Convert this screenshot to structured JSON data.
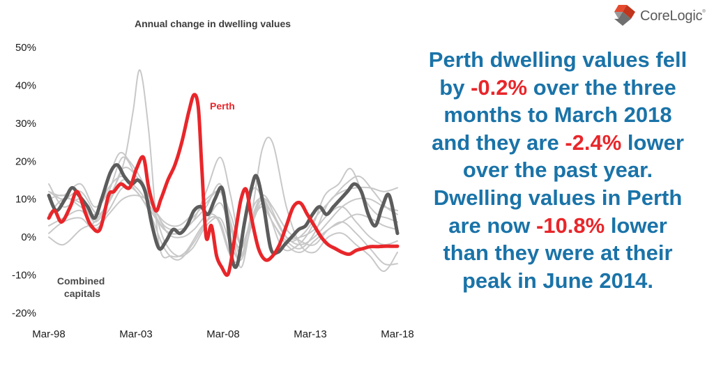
{
  "logo": {
    "name": "CoreLogic",
    "symbol": "®"
  },
  "summary": {
    "segments": [
      {
        "text": "Perth dwelling values fell by ",
        "highlight": false
      },
      {
        "text": "-0.2%",
        "highlight": true
      },
      {
        "text": " over the three months to March 2018 and they are ",
        "highlight": false
      },
      {
        "text": "-2.4%",
        "highlight": true
      },
      {
        "text": " lower over the past year. Dwelling values in Perth are now ",
        "highlight": false
      },
      {
        "text": "-10.8%",
        "highlight": true
      },
      {
        "text": " lower than they were at their peak in June 2014.",
        "highlight": false
      }
    ],
    "color": "#1a73a8",
    "highlight_color": "#e8262a"
  },
  "chart_data": {
    "type": "line",
    "title": "Annual change in dwelling values",
    "xlabel": "",
    "ylabel": "",
    "x_ticks": [
      "Mar-98",
      "Mar-03",
      "Mar-08",
      "Mar-13",
      "Mar-18"
    ],
    "x_range": [
      1998.17,
      2018.17
    ],
    "ylim": [
      -20,
      50
    ],
    "y_ticks": [
      "50%",
      "40%",
      "30%",
      "20%",
      "10%",
      "0%",
      "-10%",
      "-20%"
    ],
    "y_tick_values": [
      50,
      40,
      30,
      20,
      10,
      0,
      -10,
      -20
    ],
    "grid": false,
    "legend": "none",
    "annotations": [
      {
        "text": "Perth",
        "series": "Perth"
      },
      {
        "text": "Combined capitals",
        "series": "Combined capitals"
      }
    ],
    "series": [
      {
        "name": "Perth",
        "role": "highlight",
        "color": "#e8262a",
        "x": [
          1998.17,
          1998.5,
          1998.9,
          1999.4,
          1999.8,
          2000.3,
          2000.6,
          2001.1,
          2001.6,
          2001.9,
          2002.3,
          2002.8,
          2003.2,
          2003.6,
          2003.9,
          2004.3,
          2004.6,
          2005.0,
          2005.4,
          2005.8,
          2006.2,
          2006.5,
          2006.75,
          2006.95,
          2007.2,
          2007.5,
          2007.8,
          2008.1,
          2008.4,
          2008.6,
          2008.9,
          2009.2,
          2009.5,
          2009.8,
          2010.2,
          2010.6,
          2011.0,
          2011.4,
          2011.8,
          2012.2,
          2012.6,
          2013.0,
          2013.4,
          2013.8,
          2014.2,
          2014.6,
          2015.0,
          2015.4,
          2015.8,
          2016.2,
          2016.6,
          2017.0,
          2017.4,
          2017.8,
          2018.17
        ],
        "values": [
          5,
          7,
          4,
          8,
          12,
          6,
          3,
          2,
          11,
          12,
          14,
          13,
          18,
          21,
          13,
          7,
          10,
          15,
          19,
          25,
          33,
          37.5,
          34,
          18,
          0,
          3,
          -5,
          -8,
          -10,
          -7,
          2,
          10,
          12.5,
          5,
          -3,
          -6,
          -5,
          -2,
          3,
          8,
          9,
          6,
          3,
          0,
          -2,
          -3,
          -4,
          -4.5,
          -3.5,
          -3,
          -2.5,
          -2.5,
          -2.4,
          -2.4,
          -2.4
        ]
      },
      {
        "name": "Combined capitals",
        "role": "highlight",
        "color": "#5c5c5c",
        "x": [
          1998.17,
          1998.6,
          1999.1,
          1999.5,
          1999.9,
          2000.4,
          2000.8,
          2001.2,
          2001.7,
          2002.1,
          2002.5,
          2002.9,
          2003.3,
          2003.7,
          2004.1,
          2004.5,
          2004.9,
          2005.3,
          2005.7,
          2006.1,
          2006.5,
          2006.9,
          2007.3,
          2007.7,
          2008.1,
          2008.4,
          2008.7,
          2009.0,
          2009.4,
          2009.8,
          2010.1,
          2010.5,
          2010.9,
          2011.3,
          2011.7,
          2012.1,
          2012.5,
          2012.9,
          2013.3,
          2013.7,
          2014.1,
          2014.5,
          2014.9,
          2015.3,
          2015.7,
          2016.1,
          2016.5,
          2016.9,
          2017.3,
          2017.7,
          2018.17
        ],
        "values": [
          11,
          7,
          10,
          13,
          11,
          8,
          5,
          10,
          17,
          19,
          16,
          14,
          15,
          12,
          3,
          -3,
          -1,
          2,
          1,
          3,
          7,
          8,
          6,
          10,
          13,
          5,
          -6,
          -7,
          4,
          13,
          16,
          8,
          -3,
          -4,
          -2,
          0,
          2,
          3,
          6,
          8,
          6,
          8,
          10,
          12,
          14,
          12,
          6,
          3,
          8,
          11,
          1
        ]
      },
      {
        "name": "",
        "role": "context",
        "color": "#c8c8c8",
        "x": [
          1998.17,
          1999.0,
          2000.0,
          2001.0,
          2001.8,
          2002.5,
          2003.0,
          2003.4,
          2003.9,
          2004.5,
          2005.2,
          2006.0,
          2007.0,
          2007.8,
          2008.5,
          2009.0,
          2009.5,
          2010.0,
          2010.8,
          2011.6,
          2012.5,
          2013.3,
          2014.0,
          2014.8,
          2015.5,
          2016.3,
          2017.0,
          2017.6,
          2018.17
        ],
        "values": [
          12,
          10,
          12,
          6,
          12,
          20,
          33,
          44,
          28,
          -2,
          -5,
          -4,
          3,
          5,
          -4,
          -7,
          6,
          13,
          6,
          -3,
          -2,
          3,
          11,
          14,
          18,
          10,
          6,
          5,
          4
        ]
      },
      {
        "name": "",
        "role": "context",
        "color": "#c8c8c8",
        "x": [
          1998.17,
          1999.0,
          2000.0,
          2000.8,
          2001.5,
          2002.2,
          2002.8,
          2003.5,
          2004.2,
          2005.0,
          2005.8,
          2006.5,
          2007.3,
          2008.0,
          2008.7,
          2009.3,
          2009.9,
          2010.6,
          2011.3,
          2012.0,
          2012.8,
          2013.6,
          2014.4,
          2015.2,
          2016.0,
          2016.8,
          2017.5,
          2018.17
        ],
        "values": [
          6,
          10,
          9,
          5,
          14,
          22,
          20,
          15,
          8,
          1,
          0,
          2,
          6,
          4,
          -6,
          -4,
          8,
          10,
          4,
          -1,
          1,
          6,
          10,
          14,
          16,
          12,
          8,
          6
        ]
      },
      {
        "name": "",
        "role": "context",
        "color": "#c8c8c8",
        "x": [
          1998.17,
          1999.0,
          2000.0,
          2000.8,
          2001.6,
          2002.4,
          2003.2,
          2004.0,
          2004.8,
          2005.6,
          2006.4,
          2007.2,
          2008.0,
          2008.6,
          2009.2,
          2009.8,
          2010.4,
          2011.0,
          2011.8,
          2012.6,
          2013.4,
          2014.2,
          2015.0,
          2015.8,
          2016.6,
          2017.4,
          2018.17
        ],
        "values": [
          10,
          11,
          8,
          6,
          13,
          16,
          12,
          7,
          2,
          1,
          4,
          8,
          14,
          4,
          -5,
          3,
          9,
          6,
          0,
          -2,
          0,
          4,
          8,
          10,
          10,
          8,
          7
        ]
      },
      {
        "name": "",
        "role": "context",
        "color": "#c8c8c8",
        "x": [
          1998.17,
          1999.0,
          2000.0,
          2000.8,
          2001.6,
          2002.4,
          2003.2,
          2004.0,
          2004.8,
          2005.6,
          2006.4,
          2007.2,
          2008.0,
          2008.6,
          2009.2,
          2009.8,
          2010.4,
          2011.0,
          2011.8,
          2012.6,
          2013.4,
          2014.2,
          2015.0,
          2015.8,
          2016.6,
          2017.4,
          2018.17
        ],
        "values": [
          14,
          8,
          10,
          4,
          9,
          18,
          16,
          9,
          4,
          3,
          6,
          10,
          12,
          6,
          -2,
          5,
          11,
          8,
          2,
          -1,
          -2,
          2,
          4,
          6,
          5,
          3,
          2
        ]
      },
      {
        "name": "",
        "role": "context",
        "color": "#c8c8c8",
        "x": [
          1998.17,
          1999.0,
          2000.0,
          2000.8,
          2001.6,
          2002.4,
          2003.2,
          2004.0,
          2004.8,
          2005.6,
          2006.4,
          2007.2,
          2008.0,
          2008.6,
          2009.2,
          2009.8,
          2010.4,
          2011.0,
          2011.8,
          2012.6,
          2013.4,
          2014.2,
          2015.0,
          2015.8,
          2016.6,
          2017.4,
          2018.17
        ],
        "values": [
          3,
          5,
          7,
          3,
          7,
          13,
          12,
          6,
          -3,
          -6,
          -2,
          4,
          9,
          2,
          -3,
          4,
          8,
          4,
          -2,
          -4,
          -1,
          2,
          4,
          1,
          -3,
          -7,
          -7
        ]
      },
      {
        "name": "",
        "role": "context",
        "color": "#c8c8c8",
        "x": [
          1998.17,
          1999.0,
          2000.0,
          2000.8,
          2001.6,
          2002.4,
          2003.2,
          2004.0,
          2004.8,
          2005.6,
          2006.4,
          2007.2,
          2008.0,
          2008.6,
          2009.2,
          2009.8,
          2010.4,
          2011.0,
          2011.8,
          2012.6,
          2013.4,
          2014.2,
          2015.0,
          2015.8,
          2016.6,
          2017.4,
          2018.17
        ],
        "values": [
          1,
          4,
          5,
          2,
          6,
          10,
          11,
          9,
          3,
          2,
          4,
          12,
          21,
          11,
          -2,
          6,
          23,
          25,
          8,
          -2,
          -4,
          0,
          1,
          -2,
          -5,
          -9,
          -4
        ]
      },
      {
        "name": "",
        "role": "context",
        "color": "#c8c8c8",
        "x": [
          1998.17,
          1999.0,
          2000.0,
          2000.8,
          2001.6,
          2002.4,
          2003.2,
          2004.0,
          2004.8,
          2005.6,
          2006.4,
          2007.2,
          2008.0,
          2008.6,
          2009.2,
          2009.8,
          2010.4,
          2011.0,
          2011.8,
          2012.6,
          2013.4,
          2014.2,
          2015.0,
          2015.8,
          2016.6,
          2017.4,
          2018.17
        ],
        "values": [
          0,
          -2,
          2,
          4,
          9,
          15,
          13,
          8,
          2,
          1,
          5,
          9,
          12,
          3,
          -8,
          4,
          10,
          6,
          0,
          0,
          2,
          6,
          8,
          4,
          0,
          -2,
          -1
        ]
      },
      {
        "name": "",
        "role": "context",
        "color": "#c8c8c8",
        "x": [
          1998.17,
          1999.0,
          2000.0,
          2000.8,
          2001.6,
          2002.4,
          2003.2,
          2004.0,
          2004.8,
          2005.6,
          2006.4,
          2007.2,
          2008.0,
          2008.6,
          2009.2,
          2009.8,
          2010.4,
          2011.0,
          2011.8,
          2012.6,
          2013.4,
          2014.2,
          2015.0,
          2015.8,
          2016.6,
          2017.4,
          2018.17
        ],
        "values": [
          12,
          11,
          14,
          8,
          12,
          21,
          16,
          10,
          -1,
          -5,
          -3,
          3,
          5,
          -2,
          -6,
          3,
          10,
          4,
          -1,
          -3,
          1,
          9,
          12,
          13,
          13,
          12,
          13
        ]
      }
    ]
  }
}
